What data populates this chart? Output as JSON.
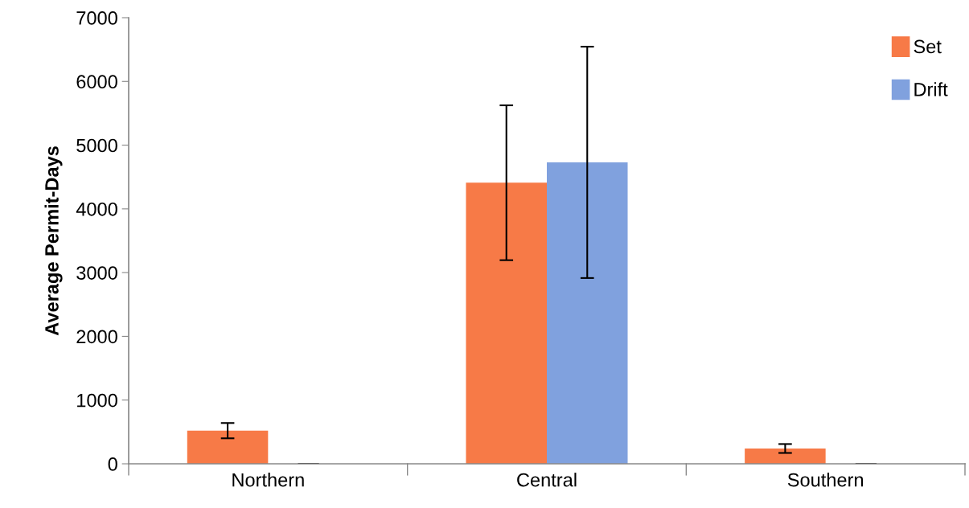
{
  "chart_data": {
    "type": "bar",
    "ylabel": "Average Permit-Days",
    "categories": [
      "Northern",
      "Central",
      "Southern"
    ],
    "series": [
      {
        "name": "Set",
        "color": "#f77a47",
        "values": [
          520,
          4410,
          240
        ],
        "errors": [
          120,
          1215,
          70
        ]
      },
      {
        "name": "Drift",
        "color": "#80a1de",
        "values": [
          0,
          4730,
          0
        ],
        "errors": [
          null,
          1815,
          null
        ]
      }
    ],
    "ylim": [
      0,
      7000
    ],
    "yticks": [
      0,
      1000,
      2000,
      3000,
      4000,
      5000,
      6000,
      7000
    ],
    "grid": false,
    "legend": "top right"
  }
}
